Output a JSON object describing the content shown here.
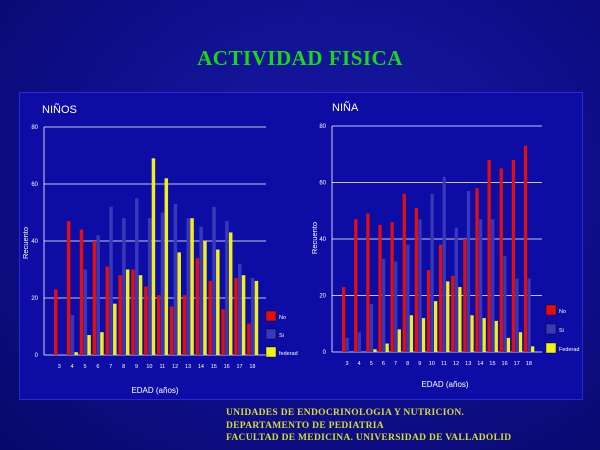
{
  "slide": {
    "title": "ACTIVIDAD FISICA",
    "footer": [
      "UNIDADES DE ENDOCRINOLOGIA Y NUTRICION.",
      "DEPARTAMENTO DE PEDIATRIA",
      "FACULTAD DE MEDICINA. UNIVERSIDAD DE VALLADOLID"
    ]
  },
  "colors": {
    "no": "#e01010",
    "si": "#3838b8",
    "federad": "#f0f020",
    "background": "#0d0da6",
    "grid": "#ffffff",
    "text": "#ffffff"
  },
  "chart_data": [
    {
      "type": "bar",
      "title": "NIÑOS",
      "xlabel": "EDAD (años)",
      "ylabel": "Recuento",
      "ylim": [
        0,
        80
      ],
      "yticks": [
        0,
        20,
        40,
        60,
        80
      ],
      "grid": true,
      "legend": "right-bottom",
      "categories": [
        "3",
        "4",
        "5",
        "6",
        "7",
        "8",
        "9",
        "10",
        "11",
        "12",
        "13",
        "14",
        "15",
        "16",
        "17",
        "18"
      ],
      "series": [
        {
          "name": "No",
          "color": "#e01010",
          "values": [
            23,
            47,
            44,
            40,
            31,
            28,
            30,
            24,
            21,
            17,
            21,
            34,
            26,
            16,
            27,
            11
          ]
        },
        {
          "name": "Si",
          "color": "#3838b8",
          "values": [
            0,
            14,
            30,
            42,
            52,
            48,
            55,
            48,
            50,
            53,
            48,
            45,
            52,
            47,
            32,
            27
          ]
        },
        {
          "name": "federad",
          "color": "#f0f020",
          "values": [
            0,
            1,
            7,
            8,
            18,
            30,
            28,
            69,
            62,
            36,
            48,
            40,
            37,
            43,
            28,
            26
          ]
        }
      ]
    },
    {
      "type": "bar",
      "title": "NIÑA",
      "xlabel": "EDAD (años)",
      "ylabel": "Recuento",
      "ylim": [
        0,
        80
      ],
      "yticks": [
        0,
        20,
        40,
        60,
        80
      ],
      "grid": true,
      "legend": "right-bottom",
      "categories": [
        "3",
        "4",
        "5",
        "6",
        "7",
        "8",
        "9",
        "10",
        "11",
        "12",
        "13",
        "14",
        "15",
        "16",
        "17",
        "18"
      ],
      "series": [
        {
          "name": "No",
          "color": "#e01010",
          "values": [
            23,
            47,
            49,
            45,
            46,
            56,
            51,
            29,
            38,
            27,
            40,
            58,
            68,
            65,
            68,
            73
          ]
        },
        {
          "name": "Si",
          "color": "#3838b8",
          "values": [
            5,
            7,
            17,
            33,
            32,
            38,
            47,
            56,
            62,
            44,
            57,
            47,
            47,
            34,
            26,
            26
          ]
        },
        {
          "name": "Federad",
          "color": "#f0f020",
          "values": [
            0,
            0,
            1,
            3,
            8,
            13,
            12,
            18,
            25,
            23,
            13,
            12,
            11,
            5,
            7,
            2
          ]
        }
      ]
    }
  ]
}
